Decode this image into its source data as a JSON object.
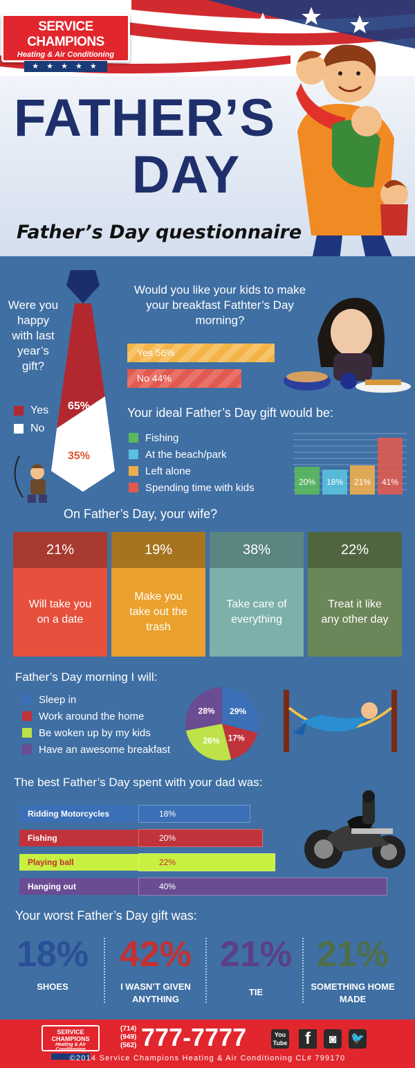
{
  "header": {
    "logo_line1": "SERVICE CHAMPIONS",
    "logo_line2": "Heating & Air Conditioning",
    "logo_stars": "★ ★ ★ ★ ★",
    "title_line1": "FATHER’S",
    "title_line2": "DAY",
    "subtitle": "Father’s Day questionnaire"
  },
  "colors": {
    "background": "#3f6fa3",
    "red": "#e1262d",
    "navy": "#1e2f6b",
    "green": "#5cb85c",
    "cyan": "#5bc0de",
    "orange": "#f0ad4e",
    "coral": "#e05a50",
    "purple": "#6a4c93",
    "lime": "#c8f041"
  },
  "chart_data": [
    {
      "type": "pie",
      "title": "Were you happy with last year’s gift?",
      "categories": [
        "Yes",
        "No"
      ],
      "values": [
        65,
        35
      ],
      "labels": [
        "65%",
        "35%"
      ],
      "colors": [
        "#b3282e",
        "#ffffff"
      ],
      "legend": "left"
    },
    {
      "type": "bar",
      "title": "Would you like your kids to make your breakfast Fathter’s Day morning?",
      "categories": [
        "Yes",
        "No"
      ],
      "values": [
        56,
        44
      ],
      "labels": [
        "Yes 56%",
        "No 44%"
      ],
      "colors": [
        "#f3b347",
        "#e05a50"
      ]
    },
    {
      "type": "bar",
      "title": "Your ideal Father’s Day gift would be:",
      "categories": [
        "Fishing",
        "At the beach/park",
        "Left alone",
        "Spending time with kids"
      ],
      "values": [
        20,
        18,
        21,
        41
      ],
      "labels": [
        "20%",
        "18%",
        "21%",
        "41%"
      ],
      "colors": [
        "#5cb85c",
        "#5bc0de",
        "#f0ad4e",
        "#e05a50"
      ],
      "ylim": [
        0,
        45
      ]
    },
    {
      "type": "table",
      "title": "On Father’s Day, your wife?",
      "items": [
        {
          "pct": "21%",
          "value": 21,
          "text": "Will take you on a date",
          "top": "#a83a2f",
          "bottom": "#e6503c"
        },
        {
          "pct": "19%",
          "value": 19,
          "text": "Make you take out the trash",
          "top": "#a6741f",
          "bottom": "#eba12d"
        },
        {
          "pct": "38%",
          "value": 38,
          "text": "Take care of everything",
          "top": "#5b8580",
          "bottom": "#7cb0ab"
        },
        {
          "pct": "22%",
          "value": 22,
          "text": "Treat it like any other day",
          "top": "#4f6540",
          "bottom": "#6b8658"
        }
      ]
    },
    {
      "type": "pie",
      "title": "Father’s Day morning I will:",
      "categories": [
        "Sleep in",
        "Work around the home",
        "Be woken up by my kids",
        "Have an awesome breakfast"
      ],
      "values": [
        29,
        17,
        26,
        28
      ],
      "labels": [
        "29%",
        "17%",
        "26%",
        "28%"
      ],
      "colors": [
        "#3b6fb6",
        "#c0333b",
        "#bde24a",
        "#6a4c93"
      ],
      "legend": "left"
    },
    {
      "type": "bar",
      "title": "The best Father’s Day spent with your dad was:",
      "categories": [
        "Ridding Motorcycles",
        "Fishing",
        "Playing ball",
        "Hanging out"
      ],
      "values": [
        18,
        20,
        22,
        40
      ],
      "labels": [
        "18%",
        "20%",
        "22%",
        "40%"
      ],
      "colors": [
        "#3b6fb6",
        "#c0333b",
        "#c8f041",
        "#6a4c93"
      ],
      "ylim": [
        0,
        40
      ]
    },
    {
      "type": "table",
      "title": "Your worst Father’s Day gift was:",
      "items": [
        {
          "pct": "18%",
          "value": 18,
          "text": "SHOES",
          "color": "#2a4f95"
        },
        {
          "pct": "42%",
          "value": 42,
          "text": "I WASN’T GIVEN ANYTHING",
          "color": "#c53131"
        },
        {
          "pct": "21%",
          "value": 21,
          "text": "TIE",
          "color": "#5b3f87"
        },
        {
          "pct": "21%",
          "value": 21,
          "text": "SOMETHING HOME MADE",
          "color": "#4f6e4a"
        }
      ]
    }
  ],
  "footer": {
    "logo_line1": "SERVICE CHAMPIONS",
    "logo_line2": "Heating & Air Conditioning",
    "area_codes": [
      "(714)",
      "(949)",
      "(562)"
    ],
    "phone": "777-7777",
    "social": [
      {
        "icon": "youtube-icon",
        "label": "You Tube"
      },
      {
        "icon": "facebook-icon",
        "label": "f"
      },
      {
        "icon": "instagram-icon",
        "label": "◙"
      },
      {
        "icon": "twitter-icon",
        "label": "🐦"
      }
    ],
    "copyright": "©2014 Service Champions Heating & Air Conditioning  CL# 799170"
  }
}
